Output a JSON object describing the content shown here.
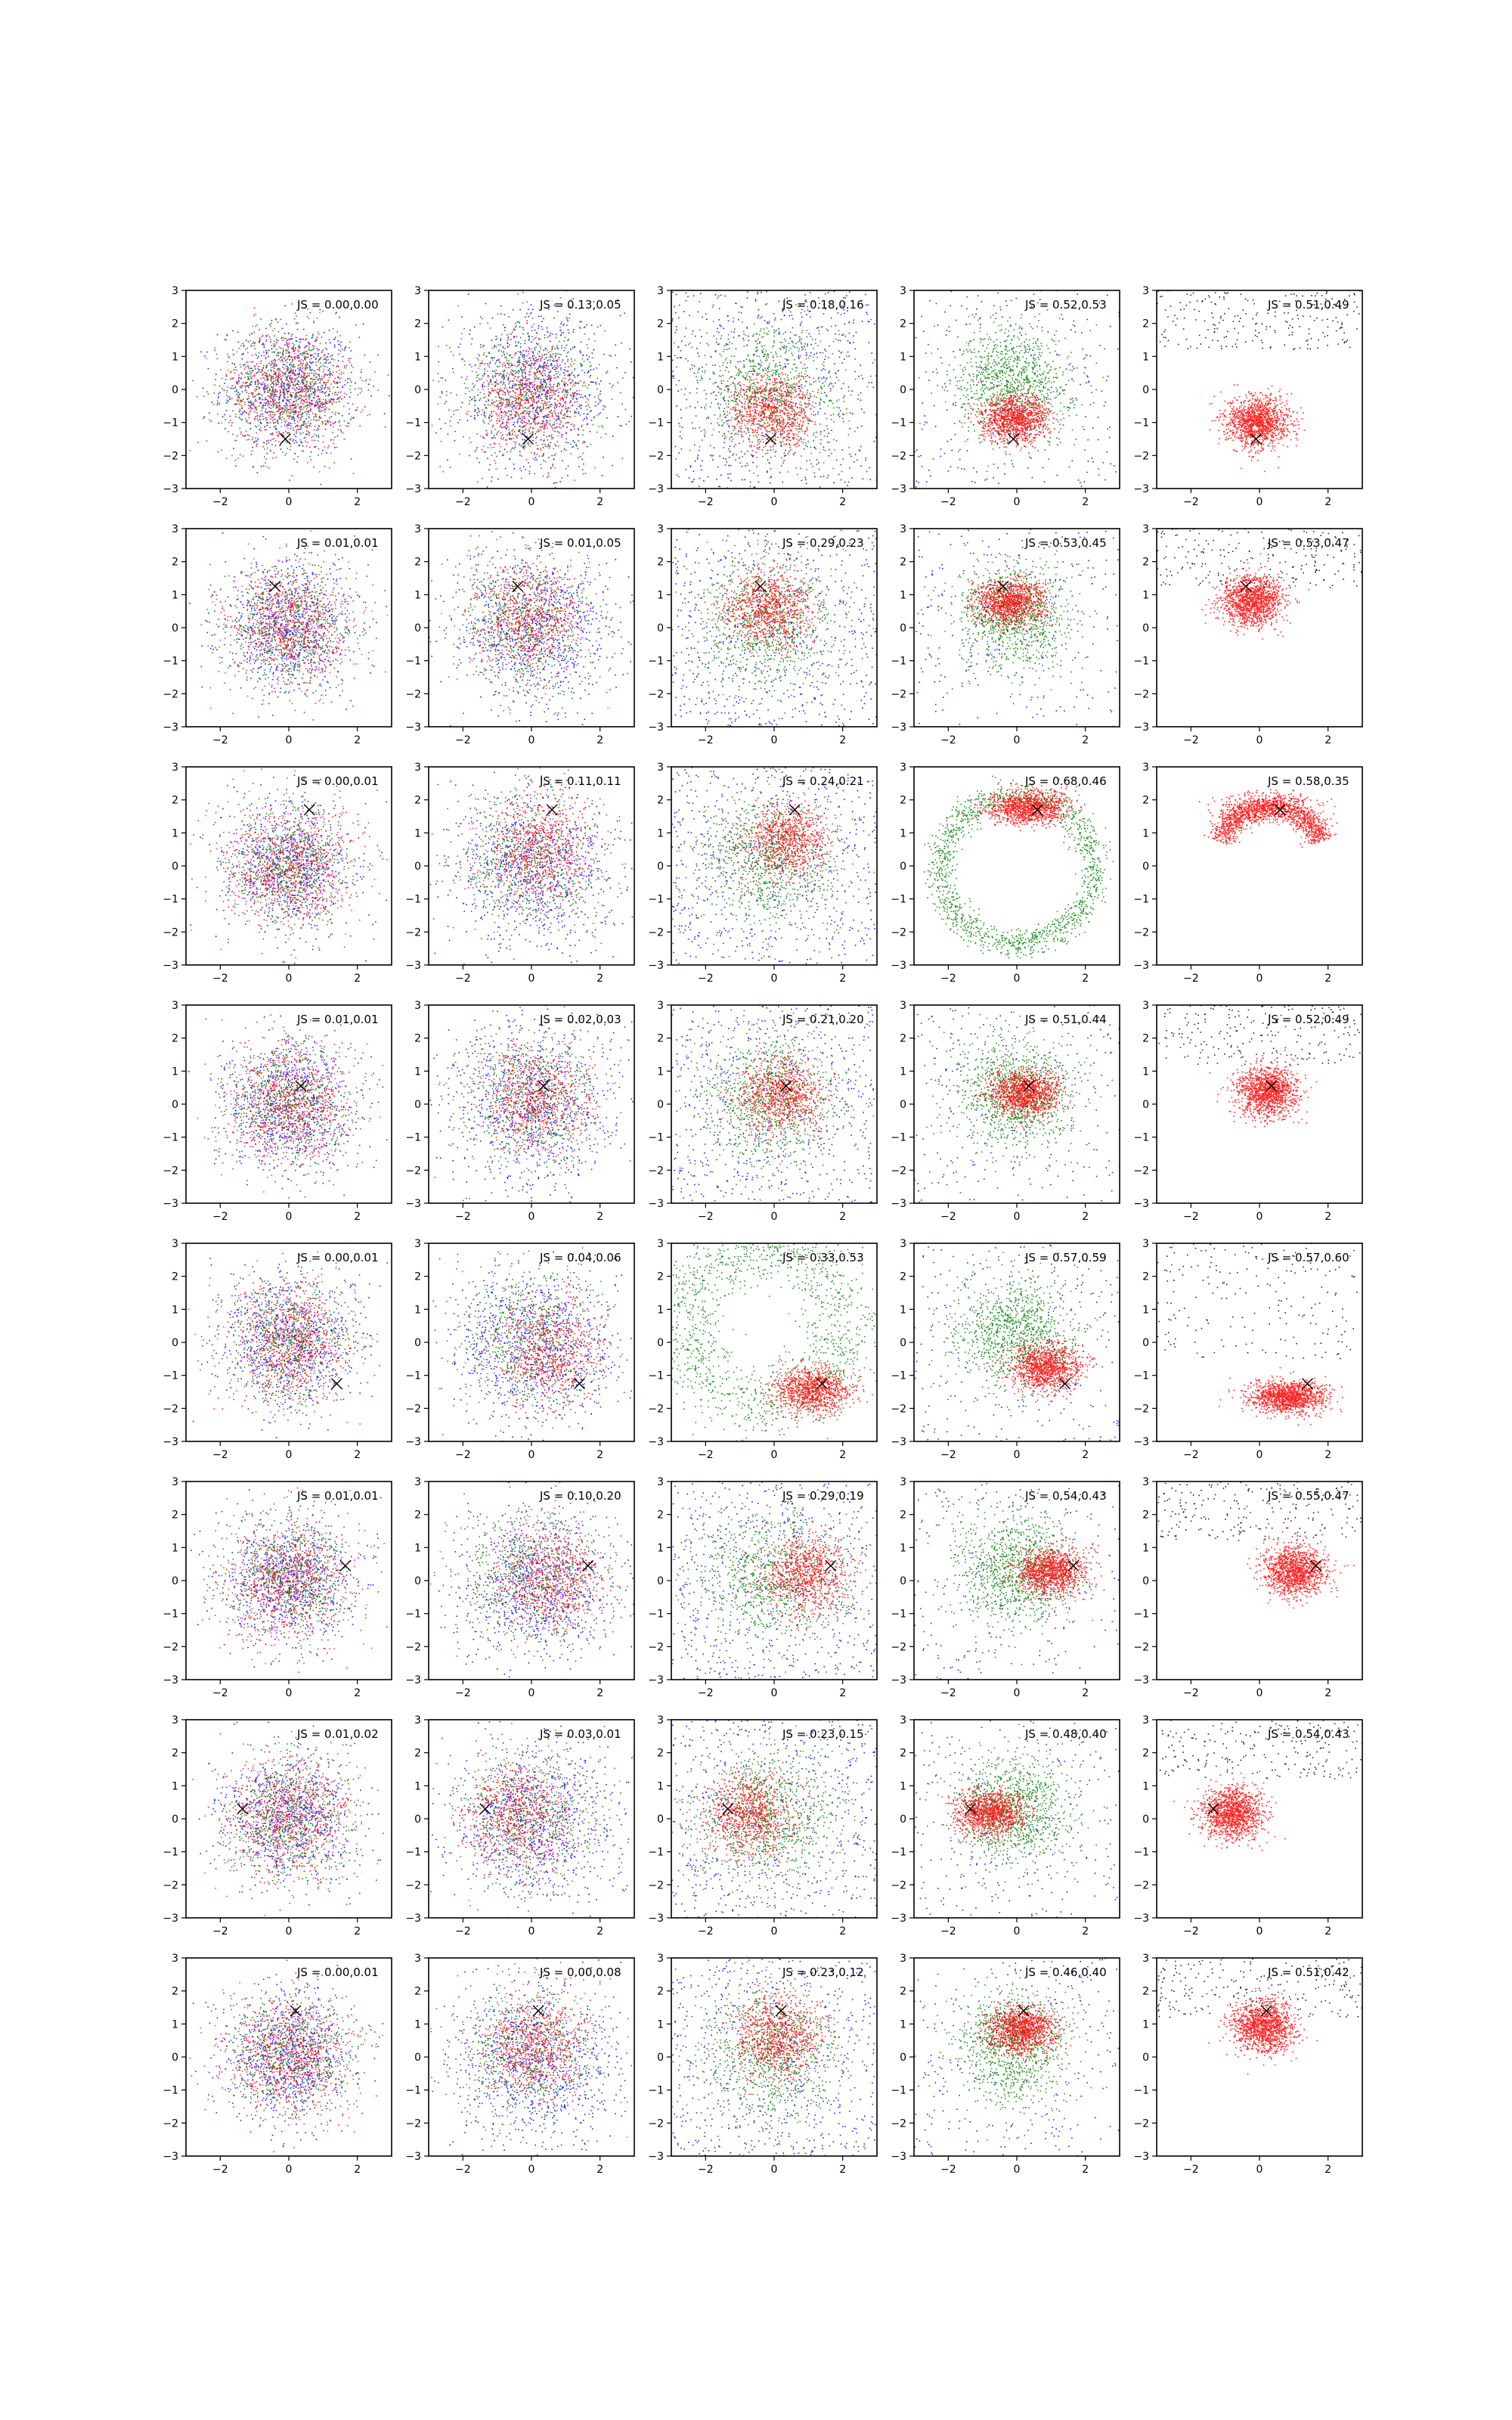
{
  "figure": {
    "rows": 8,
    "cols": 5,
    "background": "#ffffff"
  },
  "chart_data": {
    "type": "scatter",
    "title": "",
    "xlabel": "",
    "ylabel": "",
    "xlim": [
      -3,
      3
    ],
    "ylim": [
      -3,
      3
    ],
    "xticks": [
      -2,
      0,
      2
    ],
    "yticks": [
      -3,
      -2,
      -1,
      0,
      1,
      2,
      3
    ],
    "grid": false,
    "legend": "none",
    "series_colors": {
      "red": "#ff0000",
      "green": "#008000",
      "blue": "#0000ff",
      "black": "#000000",
      "magenta": "#ff00ff"
    },
    "marker": "x",
    "rows": [
      {
        "marker": [
          -0.1,
          -1.5
        ],
        "js": [
          "JS = 0.00,0.00",
          "JS = 0.13,0.05",
          "JS = 0.18,0.16",
          "JS = 0.52,0.53",
          "JS = 0.51,0.49"
        ]
      },
      {
        "marker": [
          -0.4,
          1.25
        ],
        "js": [
          "JS = 0.01,0.01",
          "JS = 0.01,0.05",
          "JS = 0.29,0.23",
          "JS = 0.53,0.45",
          "JS = 0.53,0.47"
        ]
      },
      {
        "marker": [
          0.6,
          1.7
        ],
        "js": [
          "JS = 0.00,0.01",
          "JS = 0.11,0.11",
          "JS = 0.24,0.21",
          "JS = 0.68,0.46",
          "JS = 0.58,0.35"
        ]
      },
      {
        "marker": [
          0.35,
          0.55
        ],
        "js": [
          "JS = 0.01,0.01",
          "JS = 0.02,0.03",
          "JS = 0.21,0.20",
          "JS = 0.51,0.44",
          "JS = 0.52,0.49"
        ]
      },
      {
        "marker": [
          1.4,
          -1.25
        ],
        "js": [
          "JS = 0.00,0.01",
          "JS = 0.04,0.06",
          "JS = 0.33,0.53",
          "JS = 0.57,0.59",
          "JS = 0.57,0.60"
        ]
      },
      {
        "marker": [
          1.65,
          0.45
        ],
        "js": [
          "JS = 0.01,0.01",
          "JS = 0.10,0.20",
          "JS = 0.29,0.19",
          "JS = 0.54,0.43",
          "JS = 0.55,0.47"
        ]
      },
      {
        "marker": [
          -1.35,
          0.3
        ],
        "js": [
          "JS = 0.01,0.02",
          "JS = 0.03,0.01",
          "JS = 0.23,0.15",
          "JS = 0.48,0.40",
          "JS = 0.54,0.43"
        ]
      },
      {
        "marker": [
          0.2,
          1.4
        ],
        "js": [
          "JS = 0.00,0.01",
          "JS = 0.00,0.08",
          "JS = 0.23,0.12",
          "JS = 0.46,0.40",
          "JS = 0.51,0.42"
        ]
      }
    ]
  }
}
